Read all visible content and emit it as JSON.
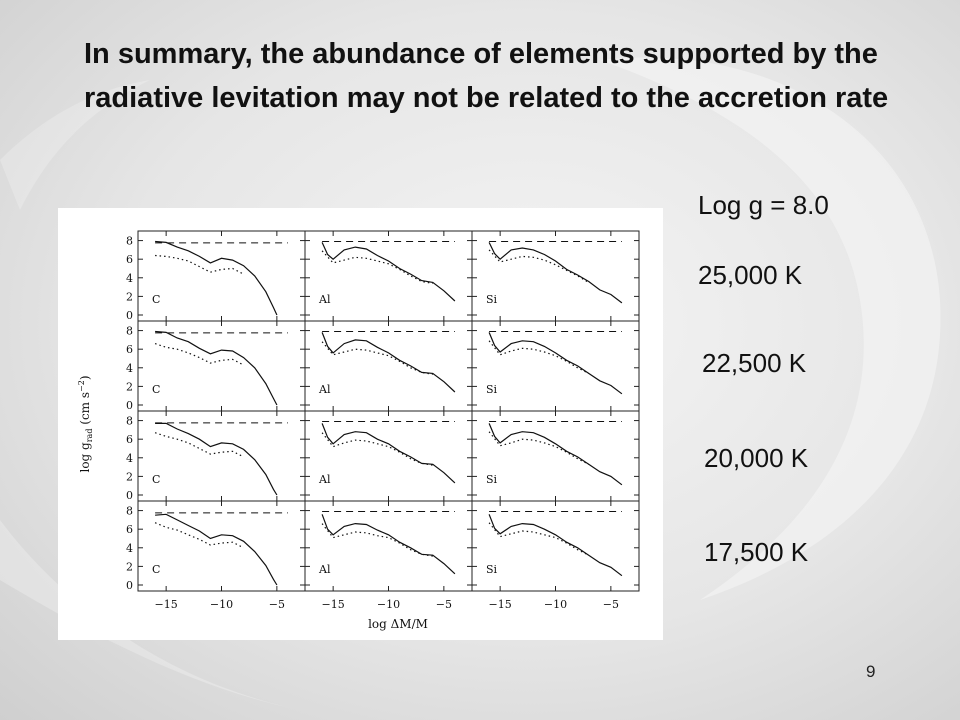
{
  "slide": {
    "title": "In summary, the abundance of elements supported by the radiative levitation may not be related to the accretion rate",
    "gravity_label": "Log g = 8.0",
    "temperatures": [
      "25,000 K",
      "22,500 K",
      "20,000 K",
      "17,500 K"
    ],
    "slide_number": "9"
  },
  "chart_data": {
    "type": "line",
    "xlabel": "log ΔM/M",
    "ylabel": "log g_rad (cm s^-2)",
    "xlim": [
      -17,
      -3
    ],
    "ylim": [
      0,
      8.6
    ],
    "xticks": [
      -15,
      -10,
      -5
    ],
    "xtick_labels": [
      "−15",
      "−10",
      "−5"
    ],
    "yticks": [
      0,
      2,
      4,
      6,
      8
    ],
    "ytick_labels": [
      "0",
      "2",
      "4",
      "6",
      "8"
    ],
    "columns": [
      "C",
      "Al",
      "Si"
    ],
    "rows": [
      "25,000 K",
      "22,500 K",
      "20,000 K",
      "17,500 K"
    ],
    "series_styles": [
      {
        "style": "dashed",
        "line": "upper"
      },
      {
        "style": "solid",
        "line": "gravity"
      },
      {
        "style": "dotted",
        "line": "lower"
      }
    ],
    "panels": {
      "C": [
        {
          "dashed": {
            "x": [
              -16,
              -4
            ],
            "y": [
              7.75,
              7.75
            ]
          },
          "solid": {
            "x": [
              -16,
              -15,
              -14,
              -13,
              -12,
              -11,
              -10,
              -9,
              -8,
              -7,
              -6,
              -5.3,
              -5
            ],
            "y": [
              7.9,
              7.8,
              7.3,
              6.9,
              6.3,
              5.6,
              6.1,
              5.9,
              5.3,
              4.2,
              2.5,
              0.8,
              0
            ]
          },
          "dotted": {
            "x": [
              -16,
              -15,
              -14,
              -13,
              -12,
              -11,
              -10,
              -9,
              -8
            ],
            "y": [
              6.4,
              6.3,
              6.1,
              5.8,
              5.2,
              4.6,
              4.9,
              5.0,
              4.4
            ]
          }
        },
        {
          "dashed": {
            "x": [
              -16,
              -4
            ],
            "y": [
              7.75,
              7.75
            ]
          },
          "solid": {
            "x": [
              -16,
              -15,
              -14,
              -13,
              -12,
              -11,
              -10,
              -9,
              -8,
              -7,
              -6,
              -5.3,
              -5
            ],
            "y": [
              7.9,
              7.8,
              7.2,
              6.8,
              6.1,
              5.5,
              5.9,
              5.8,
              5.1,
              4.0,
              2.3,
              0.7,
              0
            ]
          },
          "dotted": {
            "x": [
              -16,
              -15,
              -14,
              -13,
              -12,
              -11,
              -10,
              -9,
              -8
            ],
            "y": [
              6.6,
              6.2,
              6.0,
              5.6,
              5.1,
              4.5,
              4.8,
              4.9,
              4.3
            ]
          }
        },
        {
          "dashed": {
            "x": [
              -16,
              -4
            ],
            "y": [
              7.75,
              7.75
            ]
          },
          "solid": {
            "x": [
              -16,
              -15,
              -14,
              -13,
              -12,
              -11,
              -10,
              -9,
              -8,
              -7,
              -6,
              -5.3,
              -5
            ],
            "y": [
              7.7,
              7.7,
              7.1,
              6.6,
              6.0,
              5.2,
              5.6,
              5.5,
              4.9,
              3.8,
              2.2,
              0.6,
              0
            ]
          },
          "dotted": {
            "x": [
              -16,
              -15,
              -14,
              -13,
              -12,
              -11,
              -10,
              -9,
              -8
            ],
            "y": [
              6.7,
              6.3,
              6.0,
              5.6,
              5.0,
              4.4,
              4.6,
              4.7,
              4.1
            ]
          }
        },
        {
          "dashed": {
            "x": [
              -16,
              -4
            ],
            "y": [
              7.75,
              7.75
            ]
          },
          "solid": {
            "x": [
              -16,
              -15,
              -14,
              -13,
              -12,
              -11,
              -10,
              -9,
              -8,
              -7,
              -6,
              -5.3,
              -5
            ],
            "y": [
              7.5,
              7.6,
              7.0,
              6.4,
              5.8,
              5.0,
              5.4,
              5.3,
              4.7,
              3.6,
              2.1,
              0.6,
              0
            ]
          },
          "dotted": {
            "x": [
              -16,
              -15,
              -14,
              -13,
              -12,
              -11,
              -10,
              -9,
              -8
            ],
            "y": [
              6.7,
              6.2,
              5.9,
              5.4,
              4.9,
              4.3,
              4.5,
              4.6,
              4.0
            ]
          }
        }
      ],
      "Al": [
        {
          "dashed": {
            "x": [
              -16,
              -4
            ],
            "y": [
              7.9,
              7.9
            ]
          },
          "solid": {
            "x": [
              -16,
              -15.5,
              -15,
              -14,
              -13,
              -12,
              -11,
              -10,
              -9,
              -8,
              -7,
              -6,
              -5,
              -4
            ],
            "y": [
              7.8,
              6.5,
              6.0,
              7.0,
              7.3,
              7.1,
              6.4,
              5.8,
              5.0,
              4.4,
              3.7,
              3.5,
              2.6,
              1.5
            ]
          },
          "dotted": {
            "x": [
              -16,
              -15,
              -14,
              -13,
              -12,
              -11,
              -10,
              -9,
              -8,
              -7,
              -6
            ],
            "y": [
              6.9,
              5.6,
              5.9,
              6.2,
              6.1,
              5.8,
              5.5,
              4.9,
              4.2,
              3.6,
              3.4
            ]
          }
        },
        {
          "dashed": {
            "x": [
              -16,
              -4
            ],
            "y": [
              7.9,
              7.9
            ]
          },
          "solid": {
            "x": [
              -16,
              -15.5,
              -15,
              -14,
              -13,
              -12,
              -11,
              -10,
              -9,
              -8,
              -7,
              -6,
              -5,
              -4
            ],
            "y": [
              7.8,
              6.3,
              5.6,
              6.6,
              7.0,
              6.9,
              6.2,
              5.6,
              4.8,
              4.2,
              3.5,
              3.4,
              2.5,
              1.4
            ]
          },
          "dotted": {
            "x": [
              -16,
              -15,
              -14,
              -13,
              -12,
              -11,
              -10,
              -9,
              -8,
              -7,
              -6
            ],
            "y": [
              6.8,
              5.4,
              5.7,
              6.0,
              5.9,
              5.6,
              5.3,
              4.7,
              4.0,
              3.5,
              3.3
            ]
          }
        },
        {
          "dashed": {
            "x": [
              -16,
              -4
            ],
            "y": [
              7.9,
              7.9
            ]
          },
          "solid": {
            "x": [
              -16,
              -15.5,
              -15,
              -14,
              -13,
              -12,
              -11,
              -10,
              -9,
              -8,
              -7,
              -6,
              -5,
              -4
            ],
            "y": [
              7.7,
              6.2,
              5.5,
              6.5,
              6.8,
              6.7,
              6.0,
              5.5,
              4.7,
              4.1,
              3.4,
              3.3,
              2.4,
              1.3
            ]
          },
          "dotted": {
            "x": [
              -16,
              -15,
              -14,
              -13,
              -12,
              -11,
              -10,
              -9,
              -8,
              -7,
              -6
            ],
            "y": [
              6.7,
              5.2,
              5.6,
              5.9,
              5.8,
              5.5,
              5.2,
              4.6,
              3.9,
              3.4,
              3.2
            ]
          }
        },
        {
          "dashed": {
            "x": [
              -16,
              -4
            ],
            "y": [
              7.9,
              7.9
            ]
          },
          "solid": {
            "x": [
              -16,
              -15.5,
              -15,
              -14,
              -13,
              -12,
              -11,
              -10,
              -9,
              -8,
              -7,
              -6,
              -5,
              -4
            ],
            "y": [
              7.6,
              6.0,
              5.4,
              6.3,
              6.6,
              6.5,
              5.9,
              5.4,
              4.6,
              4.0,
              3.3,
              3.2,
              2.3,
              1.2
            ]
          },
          "dotted": {
            "x": [
              -16,
              -15,
              -14,
              -13,
              -12,
              -11,
              -10,
              -9,
              -8,
              -7,
              -6
            ],
            "y": [
              6.6,
              5.1,
              5.4,
              5.7,
              5.6,
              5.3,
              5.1,
              4.5,
              3.8,
              3.3,
              3.1
            ]
          }
        }
      ],
      "Si": [
        {
          "dashed": {
            "x": [
              -16,
              -4
            ],
            "y": [
              7.9,
              7.9
            ]
          },
          "solid": {
            "x": [
              -16,
              -15.5,
              -15,
              -14,
              -13,
              -12,
              -11,
              -10,
              -9,
              -8,
              -7,
              -6,
              -5,
              -4
            ],
            "y": [
              7.8,
              6.6,
              6.0,
              7.0,
              7.2,
              7.0,
              6.5,
              5.8,
              4.9,
              4.3,
              3.6,
              2.7,
              2.2,
              1.3
            ]
          },
          "dotted": {
            "x": [
              -16,
              -15,
              -14,
              -13,
              -12,
              -11,
              -10,
              -9,
              -8,
              -7
            ],
            "y": [
              7.0,
              5.7,
              6.0,
              6.3,
              6.2,
              5.9,
              5.4,
              4.8,
              4.2,
              3.5
            ]
          }
        },
        {
          "dashed": {
            "x": [
              -16,
              -4
            ],
            "y": [
              7.9,
              7.9
            ]
          },
          "solid": {
            "x": [
              -16,
              -15.5,
              -15,
              -14,
              -13,
              -12,
              -11,
              -10,
              -9,
              -8,
              -7,
              -6,
              -5,
              -4
            ],
            "y": [
              7.8,
              6.4,
              5.7,
              6.6,
              6.9,
              6.8,
              6.3,
              5.6,
              4.8,
              4.2,
              3.4,
              2.6,
              2.1,
              1.2
            ]
          },
          "dotted": {
            "x": [
              -16,
              -15,
              -14,
              -13,
              -12,
              -11,
              -10,
              -9,
              -8,
              -7
            ],
            "y": [
              6.9,
              5.4,
              5.8,
              6.1,
              6.0,
              5.7,
              5.3,
              4.7,
              4.0,
              3.4
            ]
          }
        },
        {
          "dashed": {
            "x": [
              -16,
              -4
            ],
            "y": [
              7.9,
              7.9
            ]
          },
          "solid": {
            "x": [
              -16,
              -15.5,
              -15,
              -14,
              -13,
              -12,
              -11,
              -10,
              -9,
              -8,
              -7,
              -6,
              -5,
              -4
            ],
            "y": [
              7.7,
              6.3,
              5.6,
              6.5,
              6.8,
              6.7,
              6.2,
              5.5,
              4.7,
              4.1,
              3.3,
              2.5,
              2.0,
              1.1
            ]
          },
          "dotted": {
            "x": [
              -16,
              -15,
              -14,
              -13,
              -12,
              -11,
              -10,
              -9,
              -8,
              -7
            ],
            "y": [
              6.8,
              5.3,
              5.6,
              6.0,
              5.9,
              5.6,
              5.2,
              4.6,
              3.9,
              3.3
            ]
          }
        },
        {
          "dashed": {
            "x": [
              -16,
              -4
            ],
            "y": [
              7.9,
              7.9
            ]
          },
          "solid": {
            "x": [
              -16,
              -15.5,
              -15,
              -14,
              -13,
              -12,
              -11,
              -10,
              -9,
              -8,
              -7,
              -6,
              -5,
              -4
            ],
            "y": [
              7.6,
              6.1,
              5.5,
              6.3,
              6.6,
              6.5,
              6.0,
              5.4,
              4.6,
              4.0,
              3.2,
              2.4,
              1.9,
              1.0
            ]
          },
          "dotted": {
            "x": [
              -16,
              -15,
              -14,
              -13,
              -12,
              -11,
              -10,
              -9,
              -8,
              -7
            ],
            "y": [
              6.7,
              5.2,
              5.5,
              5.8,
              5.7,
              5.4,
              5.1,
              4.5,
              3.8,
              3.2
            ]
          }
        }
      ]
    }
  }
}
